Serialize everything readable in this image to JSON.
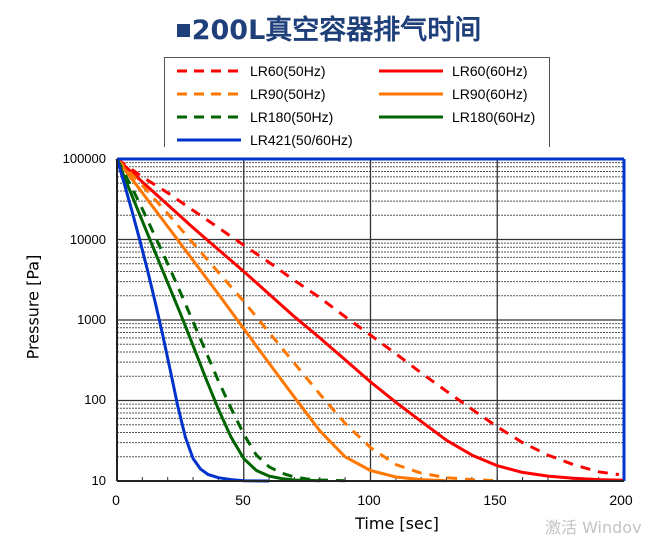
{
  "chart_data": {
    "type": "line",
    "title": "200L真空容器排气时间",
    "xlabel": "Time [sec]",
    "ylabel": "Pressure [Pa]",
    "xlim": [
      0,
      200
    ],
    "ylim": [
      10,
      100000
    ],
    "yscale": "log",
    "grid": true,
    "legend_position": "top",
    "x_ticks": [
      "0",
      "50",
      "100",
      "150",
      "200"
    ],
    "y_ticks": [
      "100000",
      "10000",
      "1000",
      "100",
      "10"
    ],
    "colors": {
      "red": "#ff0000",
      "orange": "#ff7700",
      "green": "#006400",
      "blue": "#0033cc",
      "title": "#1f3f7a",
      "frame": "#0033cc"
    },
    "series": [
      {
        "name": "LR60(50Hz)",
        "color": "#ff0000",
        "dash": true,
        "x": [
          0,
          10,
          20,
          30,
          40,
          50,
          60,
          70,
          80,
          90,
          100,
          110,
          120,
          130,
          140,
          150,
          160,
          170,
          180,
          190,
          198
        ],
        "y": [
          100000,
          60000,
          38000,
          23000,
          14000,
          8500,
          5200,
          3100,
          1900,
          1100,
          650,
          380,
          220,
          130,
          78,
          47,
          30,
          21,
          16,
          13,
          12
        ]
      },
      {
        "name": "LR60(60Hz)",
        "color": "#ff0000",
        "dash": false,
        "x": [
          0,
          10,
          20,
          30,
          40,
          50,
          60,
          70,
          80,
          90,
          100,
          110,
          120,
          130,
          140,
          150,
          160,
          170,
          180,
          190,
          200
        ],
        "y": [
          100000,
          52000,
          27000,
          14000,
          7500,
          4000,
          2100,
          1100,
          600,
          320,
          170,
          95,
          55,
          32,
          21,
          15.5,
          12.8,
          11.5,
          10.8,
          10.4,
          10.2
        ]
      },
      {
        "name": "LR90(50Hz)",
        "color": "#ff7700",
        "dash": true,
        "x": [
          0,
          10,
          20,
          30,
          40,
          50,
          60,
          70,
          80,
          90,
          100,
          110,
          120,
          130,
          140,
          150
        ],
        "y": [
          100000,
          47000,
          21000,
          9000,
          3900,
          1700,
          700,
          290,
          120,
          52,
          26,
          16,
          12.5,
          11,
          10.4,
          10.1
        ]
      },
      {
        "name": "LR90(60Hz)",
        "color": "#ff7700",
        "dash": false,
        "x": [
          0,
          10,
          20,
          30,
          40,
          50,
          60,
          70,
          80,
          90,
          100,
          110,
          120,
          130
        ],
        "y": [
          100000,
          38000,
          14500,
          5500,
          2100,
          780,
          290,
          110,
          42,
          20,
          13.5,
          11.2,
          10.4,
          10.1
        ]
      },
      {
        "name": "LR180(50Hz)",
        "color": "#006400",
        "dash": true,
        "x": [
          0,
          5,
          10,
          15,
          20,
          25,
          30,
          35,
          40,
          45,
          50,
          55,
          60,
          65,
          70,
          75,
          80,
          90
        ],
        "y": [
          100000,
          50000,
          24000,
          11000,
          5000,
          2200,
          950,
          410,
          175,
          80,
          38,
          21,
          15,
          12.5,
          11.2,
          10.6,
          10.3,
          10.1
        ]
      },
      {
        "name": "LR180(60Hz)",
        "color": "#006400",
        "dash": false,
        "x": [
          0,
          5,
          10,
          15,
          20,
          25,
          30,
          35,
          40,
          45,
          50,
          55,
          60,
          65,
          70,
          80
        ],
        "y": [
          100000,
          41000,
          17000,
          7000,
          2900,
          1200,
          480,
          190,
          78,
          35,
          19,
          13.5,
          11.5,
          10.7,
          10.3,
          10.1
        ]
      },
      {
        "name": "LR421(50/60Hz)",
        "color": "#0033cc",
        "dash": false,
        "x": [
          0,
          3,
          6,
          9,
          12,
          15,
          18,
          21,
          24,
          27,
          30,
          33,
          36,
          40,
          45,
          50,
          60
        ],
        "y": [
          100000,
          48000,
          22000,
          9800,
          4200,
          1700,
          660,
          240,
          85,
          35,
          19,
          14,
          12,
          11,
          10.4,
          10.1,
          10
        ]
      }
    ]
  },
  "watermark": "激活 Windov"
}
